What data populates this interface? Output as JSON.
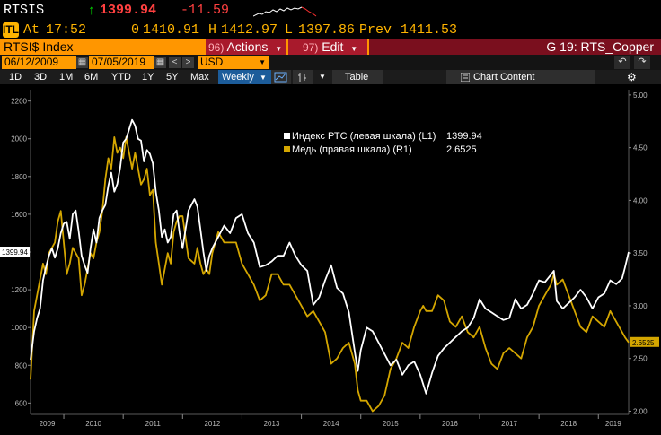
{
  "quote": {
    "ticker": "RTSI$",
    "arrow": "↑",
    "last": "1399.94",
    "change": "-11.59",
    "at_label": "At",
    "time": "17:52",
    "open_label": "0",
    "open": "1410.91",
    "high_label": "H",
    "high": "1412.97",
    "low_label": "L",
    "low": "1397.86",
    "prev_label": "Prev",
    "prev": "1411.53",
    "icon_text": "ITL"
  },
  "titlebar": {
    "title": "RTSI$ Index",
    "actions_num": "96)",
    "actions_label": "Actions",
    "edit_num": "97)",
    "edit_label": "Edit",
    "chart_name": "G 19: RTS_Copper"
  },
  "controls": {
    "start_date": "06/12/2009",
    "end_date": "07/05/2019",
    "currency": "USD",
    "prev_arrow": "<",
    "next_arrow": ">",
    "undo_icon": "undo-icon",
    "redo_icon": "redo-icon"
  },
  "toolbar": {
    "ranges": [
      "1D",
      "3D",
      "1M",
      "6M",
      "YTD",
      "1Y",
      "5Y",
      "Max"
    ],
    "frequency": "Weekly",
    "table_label": "Table",
    "chart_content_label": "Chart Content"
  },
  "colors": {
    "rts": "#ffffff",
    "copper": "#d4a600",
    "titlebar": "#ff9600",
    "menubar": "#a81a2c",
    "last_price": "#ff4040",
    "arrow": "#00d000"
  },
  "chart_data": {
    "type": "line",
    "legend": [
      {
        "name": "Индекс РТС (левая шкала) (L1)",
        "value": "1399.94"
      },
      {
        "name": "Медь (правая шкала) (R1)",
        "value": "2.6525"
      }
    ],
    "left_axis": {
      "ticks": [
        600,
        800,
        1000,
        1200,
        1400,
        1600,
        1800,
        2000,
        2200
      ],
      "range": [
        540,
        2260
      ],
      "last_label": "1399.94"
    },
    "right_axis": {
      "ticks": [
        "2.00",
        "2.50",
        "3.00",
        "3.50",
        "4.00",
        "4.50",
        "5.00"
      ],
      "range": [
        1.97,
        5.05
      ],
      "last_label": "2.6525"
    },
    "x_labels": [
      "2009",
      "2010",
      "2011",
      "2012",
      "2013",
      "2014",
      "2015",
      "2016",
      "2017",
      "2018",
      "2019"
    ],
    "x_range": [
      2009.44,
      2019.51
    ],
    "series": [
      {
        "name": "Индекс РТС (левая шкала) (L1)",
        "axis": "left",
        "color": "#ffffff",
        "x": [
          2009.44,
          2009.5,
          2009.55,
          2009.6,
          2009.65,
          2009.7,
          2009.75,
          2009.8,
          2009.85,
          2009.9,
          2009.95,
          2010.0,
          2010.05,
          2010.1,
          2010.15,
          2010.2,
          2010.25,
          2010.3,
          2010.35,
          2010.4,
          2010.45,
          2010.5,
          2010.55,
          2010.6,
          2010.65,
          2010.7,
          2010.75,
          2010.8,
          2010.85,
          2010.9,
          2010.95,
          2011.0,
          2011.05,
          2011.1,
          2011.15,
          2011.2,
          2011.25,
          2011.3,
          2011.35,
          2011.4,
          2011.45,
          2011.5,
          2011.55,
          2011.6,
          2011.65,
          2011.7,
          2011.75,
          2011.8,
          2011.85,
          2011.9,
          2011.95,
          2012.0,
          2012.1,
          2012.2,
          2012.25,
          2012.3,
          2012.35,
          2012.4,
          2012.45,
          2012.5,
          2012.6,
          2012.7,
          2012.8,
          2012.9,
          2013.0,
          2013.1,
          2013.2,
          2013.3,
          2013.4,
          2013.5,
          2013.6,
          2013.7,
          2013.8,
          2013.9,
          2014.0,
          2014.1,
          2014.2,
          2014.3,
          2014.4,
          2014.5,
          2014.6,
          2014.7,
          2014.8,
          2014.9,
          2014.95,
          2015.0,
          2015.1,
          2015.2,
          2015.3,
          2015.4,
          2015.5,
          2015.6,
          2015.7,
          2015.8,
          2015.9,
          2016.0,
          2016.05,
          2016.1,
          2016.2,
          2016.3,
          2016.4,
          2016.5,
          2016.6,
          2016.7,
          2016.8,
          2016.9,
          2017.0,
          2017.1,
          2017.2,
          2017.3,
          2017.4,
          2017.5,
          2017.6,
          2017.7,
          2017.8,
          2017.9,
          2018.0,
          2018.1,
          2018.2,
          2018.25,
          2018.3,
          2018.4,
          2018.5,
          2018.6,
          2018.7,
          2018.8,
          2018.9,
          2019.0,
          2019.1,
          2019.2,
          2019.3,
          2019.4,
          2019.45,
          2019.51
        ],
        "y": [
          830,
          980,
          1050,
          1100,
          1250,
          1320,
          1380,
          1420,
          1370,
          1420,
          1500,
          1550,
          1560,
          1470,
          1600,
          1620,
          1510,
          1380,
          1330,
          1290,
          1420,
          1520,
          1450,
          1580,
          1620,
          1650,
          1750,
          1820,
          1720,
          1760,
          1850,
          1980,
          2000,
          2050,
          2100,
          2070,
          2000,
          1990,
          1880,
          1940,
          1920,
          1870,
          1720,
          1620,
          1480,
          1520,
          1450,
          1480,
          1600,
          1620,
          1500,
          1420,
          1620,
          1680,
          1640,
          1520,
          1400,
          1300,
          1380,
          1420,
          1480,
          1540,
          1500,
          1580,
          1600,
          1500,
          1450,
          1320,
          1330,
          1350,
          1380,
          1380,
          1450,
          1380,
          1330,
          1300,
          1120,
          1160,
          1250,
          1330,
          1210,
          1180,
          1080,
          870,
          770,
          880,
          1000,
          980,
          920,
          860,
          800,
          830,
          750,
          800,
          820,
          750,
          700,
          650,
          760,
          850,
          890,
          920,
          950,
          980,
          1000,
          1050,
          1150,
          1100,
          1080,
          1060,
          1040,
          1050,
          1150,
          1100,
          1120,
          1180,
          1250,
          1240,
          1280,
          1300,
          1140,
          1100,
          1130,
          1160,
          1200,
          1160,
          1100,
          1160,
          1180,
          1250,
          1230,
          1260,
          1320,
          1399.94
        ]
      },
      {
        "name": "Медь (правая шкала) (R1)",
        "axis": "right",
        "color": "#d4a600",
        "x": [
          2009.44,
          2009.5,
          2009.55,
          2009.6,
          2009.65,
          2009.7,
          2009.75,
          2009.8,
          2009.85,
          2009.9,
          2009.95,
          2010.0,
          2010.05,
          2010.1,
          2010.15,
          2010.2,
          2010.25,
          2010.3,
          2010.35,
          2010.4,
          2010.45,
          2010.5,
          2010.55,
          2010.6,
          2010.65,
          2010.7,
          2010.75,
          2010.8,
          2010.85,
          2010.9,
          2010.95,
          2011.0,
          2011.05,
          2011.1,
          2011.15,
          2011.2,
          2011.25,
          2011.3,
          2011.35,
          2011.4,
          2011.45,
          2011.5,
          2011.55,
          2011.6,
          2011.65,
          2011.7,
          2011.75,
          2011.8,
          2011.85,
          2011.9,
          2011.95,
          2012.0,
          2012.1,
          2012.2,
          2012.25,
          2012.3,
          2012.35,
          2012.4,
          2012.45,
          2012.5,
          2012.6,
          2012.7,
          2012.8,
          2012.9,
          2013.0,
          2013.1,
          2013.2,
          2013.3,
          2013.4,
          2013.5,
          2013.6,
          2013.7,
          2013.8,
          2013.9,
          2014.0,
          2014.1,
          2014.2,
          2014.3,
          2014.4,
          2014.5,
          2014.6,
          2014.7,
          2014.8,
          2014.9,
          2014.95,
          2015.0,
          2015.1,
          2015.2,
          2015.3,
          2015.4,
          2015.5,
          2015.6,
          2015.7,
          2015.8,
          2015.9,
          2016.0,
          2016.05,
          2016.1,
          2016.2,
          2016.3,
          2016.4,
          2016.5,
          2016.6,
          2016.7,
          2016.8,
          2016.9,
          2017.0,
          2017.1,
          2017.2,
          2017.3,
          2017.4,
          2017.5,
          2017.6,
          2017.7,
          2017.8,
          2017.9,
          2018.0,
          2018.1,
          2018.2,
          2018.25,
          2018.3,
          2018.4,
          2018.5,
          2018.6,
          2018.7,
          2018.8,
          2018.9,
          2019.0,
          2019.1,
          2019.2,
          2019.3,
          2019.4,
          2019.45,
          2019.51
        ],
        "y": [
          2.3,
          2.95,
          3.1,
          3.25,
          3.4,
          3.3,
          3.5,
          3.55,
          3.6,
          3.8,
          3.9,
          3.6,
          3.3,
          3.4,
          3.55,
          3.5,
          3.45,
          3.1,
          3.2,
          3.35,
          3.5,
          3.45,
          3.6,
          3.7,
          3.9,
          4.2,
          4.4,
          4.3,
          4.6,
          4.45,
          4.5,
          4.4,
          4.6,
          4.45,
          4.3,
          4.45,
          4.3,
          4.15,
          4.2,
          4.3,
          4.05,
          4.1,
          3.6,
          3.4,
          3.2,
          3.35,
          3.5,
          3.4,
          3.7,
          3.8,
          3.85,
          3.85,
          3.45,
          3.4,
          3.55,
          3.4,
          3.3,
          3.35,
          3.3,
          3.5,
          3.7,
          3.6,
          3.6,
          3.6,
          3.4,
          3.3,
          3.2,
          3.05,
          3.1,
          3.3,
          3.3,
          3.2,
          3.2,
          3.1,
          3.0,
          2.9,
          2.95,
          2.85,
          2.75,
          2.45,
          2.5,
          2.6,
          2.65,
          2.45,
          2.2,
          2.1,
          2.1,
          2.0,
          2.05,
          2.15,
          2.4,
          2.5,
          2.65,
          2.6,
          2.8,
          2.95,
          3.0,
          2.95,
          2.95,
          3.1,
          3.05,
          2.85,
          2.8,
          2.9,
          2.75,
          2.7,
          2.8,
          2.6,
          2.45,
          2.4,
          2.55,
          2.6,
          2.55,
          2.5,
          2.7,
          2.8,
          3.0,
          3.1,
          3.2,
          3.3,
          3.2,
          3.25,
          3.1,
          2.95,
          2.8,
          2.75,
          2.9,
          2.85,
          2.8,
          2.95,
          2.85,
          2.75,
          2.7,
          2.6525
        ]
      }
    ]
  }
}
